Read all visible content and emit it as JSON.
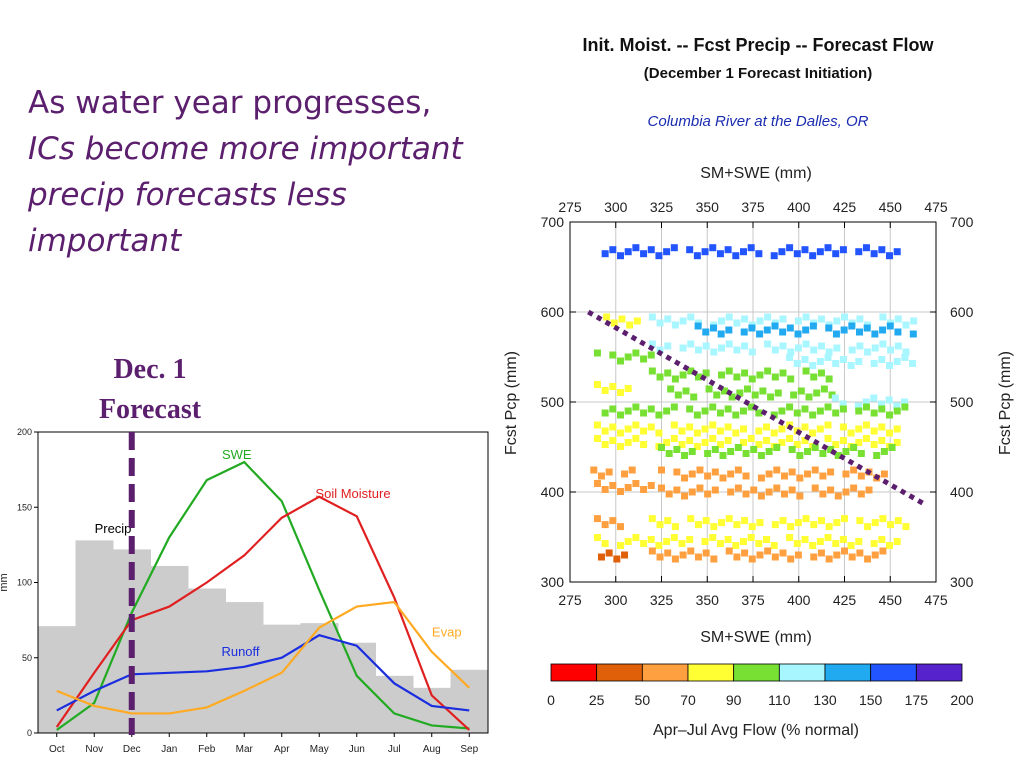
{
  "slide": {
    "lines": [
      "As water year progresses,",
      "ICs become more important",
      "precip forecasts less",
      "important"
    ],
    "marker_label": [
      "Dec. 1",
      "Forecast"
    ]
  },
  "colors": {
    "slide_text": "#5b1f6e",
    "dashed_marker": "#5b1f6e"
  },
  "chart_data": [
    {
      "type": "line",
      "xlabel": "",
      "ylabel": "mm",
      "ylim": [
        0,
        200
      ],
      "yticks": [
        0,
        50,
        100,
        150,
        200
      ],
      "categories": [
        "Oct",
        "Nov",
        "Dec",
        "Jan",
        "Feb",
        "Mar",
        "Apr",
        "May",
        "Jun",
        "Jul",
        "Aug",
        "Sep"
      ],
      "bars": {
        "name": "Precip",
        "color": "#cccccc",
        "values": [
          71,
          128,
          122,
          111,
          96,
          87,
          72,
          73,
          60,
          38,
          30,
          42
        ]
      },
      "series": [
        {
          "name": "SWE",
          "color": "#22aa22",
          "values": [
            2,
            20,
            80,
            130,
            168,
            180,
            154,
            95,
            38,
            13,
            5,
            3
          ]
        },
        {
          "name": "Soil Moisture",
          "color": "#e02020",
          "values": [
            4,
            40,
            75,
            84,
            100,
            118,
            143,
            157,
            144,
            90,
            25,
            2
          ]
        },
        {
          "name": "Runoff",
          "color": "#1a2ee0",
          "values": [
            15,
            28,
            39,
            40,
            41,
            44,
            50,
            65,
            58,
            33,
            18,
            15
          ]
        },
        {
          "name": "Evap",
          "color": "#ffaa22",
          "values": [
            28,
            18,
            13,
            13,
            17,
            28,
            40,
            70,
            84,
            87,
            54,
            30
          ]
        }
      ],
      "marker": {
        "label": "Dec. 1 Forecast",
        "category": "Dec"
      }
    },
    {
      "type": "scatter",
      "title": "Init. Moist. -- Fcst Precip -- Forecast Flow",
      "subtitle": "(December 1 Forecast Initiation)",
      "location": "Columbia River at the Dalles, OR",
      "xlabel": "SM+SWE (mm)",
      "xlabel_top": "SM+SWE (mm)",
      "ylabel": "Fcst Pcp (mm)",
      "ylabel_right": "Fcst Pcp (mm)",
      "xlim": [
        275,
        475
      ],
      "ylim": [
        300,
        700
      ],
      "xticks": [
        275,
        300,
        325,
        350,
        375,
        400,
        425,
        450,
        475
      ],
      "yticks": [
        300,
        400,
        500,
        600,
        700
      ],
      "colorbar": {
        "label": "Apr–Jul Avg Flow (% normal)",
        "bounds": [
          0,
          25,
          50,
          70,
          90,
          110,
          130,
          150,
          175,
          200
        ],
        "colors": [
          "#ff0000",
          "#e0600a",
          "#ffa040",
          "#ffff33",
          "#77e033",
          "#a8f6ff",
          "#22aaf0",
          "#2255ff",
          "#5522cc"
        ]
      },
      "bands": [
        {
          "y": 667,
          "x": [
            290,
            455
          ],
          "cls": 7
        },
        {
          "y": 590,
          "x": [
            295,
            315
          ],
          "cls": 3
        },
        {
          "y": 590,
          "x": [
            320,
            465
          ],
          "cls": 5
        },
        {
          "y": 580,
          "x": [
            345,
            465
          ],
          "cls": 6
        },
        {
          "y": 560,
          "x": [
            320,
            460
          ],
          "cls": 5
        },
        {
          "y": 550,
          "x": [
            290,
            320
          ],
          "cls": 4
        },
        {
          "y": 545,
          "x": [
            395,
            465
          ],
          "cls": 5
        },
        {
          "y": 530,
          "x": [
            320,
            420
          ],
          "cls": 4
        },
        {
          "y": 515,
          "x": [
            290,
            310
          ],
          "cls": 3
        },
        {
          "y": 510,
          "x": [
            330,
            420
          ],
          "cls": 4
        },
        {
          "y": 500,
          "x": [
            420,
            460
          ],
          "cls": 5
        },
        {
          "y": 490,
          "x": [
            290,
            460
          ],
          "cls": 4
        },
        {
          "y": 470,
          "x": [
            290,
            455
          ],
          "cls": 3
        },
        {
          "y": 455,
          "x": [
            290,
            460
          ],
          "cls": 3
        },
        {
          "y": 445,
          "x": [
            325,
            455
          ],
          "cls": 4
        },
        {
          "y": 420,
          "x": [
            288,
            312
          ],
          "cls": 2
        },
        {
          "y": 420,
          "x": [
            325,
            450
          ],
          "cls": 2
        },
        {
          "y": 405,
          "x": [
            290,
            320
          ],
          "cls": 2
        },
        {
          "y": 400,
          "x": [
            325,
            440
          ],
          "cls": 2
        },
        {
          "y": 366,
          "x": [
            290,
            305
          ],
          "cls": 2
        },
        {
          "y": 366,
          "x": [
            320,
            460
          ],
          "cls": 3
        },
        {
          "y": 345,
          "x": [
            290,
            455
          ],
          "cls": 3
        },
        {
          "y": 330,
          "x": [
            288,
            305
          ],
          "cls": 1
        },
        {
          "y": 330,
          "x": [
            320,
            450
          ],
          "cls": 2
        }
      ],
      "trend_line": {
        "x": [
          285,
          470
        ],
        "y": [
          600,
          385
        ]
      }
    }
  ]
}
